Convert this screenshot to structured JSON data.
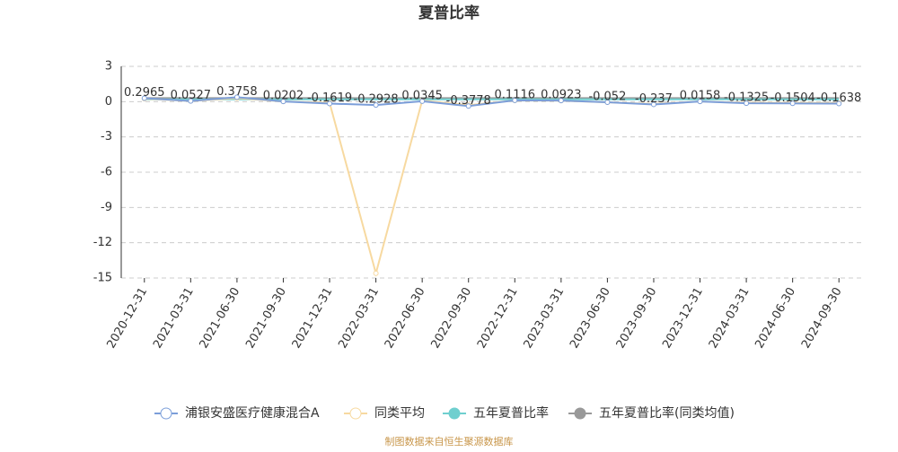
{
  "chart_data": {
    "type": "line",
    "title": "夏普比率",
    "categories": [
      "2020-12-31",
      "2021-03-31",
      "2021-06-30",
      "2021-09-30",
      "2021-12-31",
      "2022-03-31",
      "2022-06-30",
      "2022-09-30",
      "2022-12-31",
      "2023-03-31",
      "2023-06-30",
      "2023-09-30",
      "2023-12-31",
      "2024-03-31",
      "2024-06-30",
      "2024-09-30"
    ],
    "series": [
      {
        "name": "浦银安盛医疗健康混合A",
        "color": "#7b9ed9",
        "values": [
          0.2965,
          0.0527,
          0.3758,
          0.0202,
          -0.1619,
          -0.2928,
          0.0345,
          -0.3778,
          0.1116,
          0.0923,
          -0.052,
          -0.237,
          0.0158,
          -0.1325,
          -0.1504,
          -0.1638
        ]
      },
      {
        "name": "同类平均",
        "color": "#f7d9a0",
        "values": [
          0.25,
          0.05,
          0.3,
          0.02,
          -0.1,
          -14.6,
          0.1,
          -0.3,
          0.1,
          0.08,
          -0.05,
          -0.2,
          0.02,
          -0.1,
          -0.1,
          -0.12
        ]
      },
      {
        "name": "五年夏普比率",
        "color": "#6fcfcf",
        "values": [
          0.2,
          0.2,
          0.2,
          0.2,
          0.2,
          0.2,
          0.2,
          0.2,
          0.2,
          0.2,
          0.2,
          0.2,
          0.2,
          0.2,
          0.2,
          0.2
        ]
      },
      {
        "name": "五年夏普比率(同类均值)",
        "color": "#999999",
        "values": [
          0.3,
          0.3,
          0.3,
          0.3,
          0.3,
          0.3,
          0.3,
          0.3,
          0.3,
          0.3,
          0.3,
          0.3,
          0.3,
          0.3,
          0.3,
          0.3
        ]
      }
    ],
    "ylim": [
      -15,
      3
    ],
    "yticks": [
      3,
      0,
      -3,
      -6,
      -9,
      -12,
      -15
    ],
    "grid": true,
    "footer": "制图数据来自恒生聚源数据库"
  }
}
